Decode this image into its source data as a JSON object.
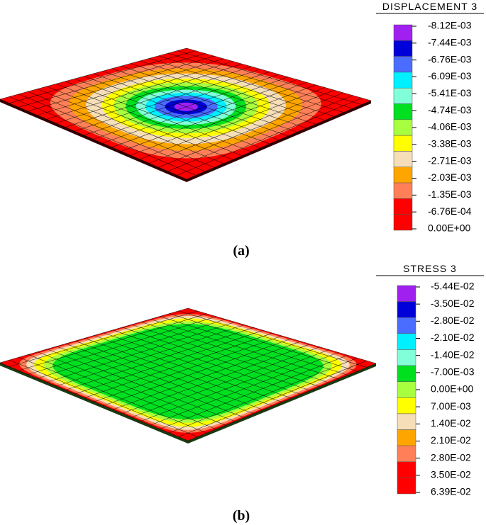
{
  "panels": [
    {
      "legend_title": "DISPLACEMENT 3",
      "labels": [
        "-8.12E-03",
        "-7.44E-03",
        "-6.76E-03",
        "-6.09E-03",
        "-5.41E-03",
        "-4.74E-03",
        "-4.06E-03",
        "-3.38E-03",
        "-2.71E-03",
        "-2.03E-03",
        "-1.35E-03",
        "-6.76E-04",
        "0.00E+00"
      ],
      "colors": [
        "#a020f0",
        "#0000d8",
        "#4a6cff",
        "#00f0ff",
        "#80ffd8",
        "#00e020",
        "#a8ff40",
        "#ffff00",
        "#f5deb8",
        "#ffa500",
        "#ff8058",
        "#ff0000",
        "#ff0000"
      ],
      "caption": "(a)"
    },
    {
      "legend_title": "STRESS 3",
      "labels": [
        "-5.44E-02",
        "-3.50E-02",
        "-2.80E-02",
        "-2.10E-02",
        "-1.40E-02",
        "-7.00E-03",
        "0.00E+00",
        "7.00E-03",
        "1.40E-02",
        "2.10E-02",
        "2.80E-02",
        "3.50E-02",
        "6.39E-02"
      ],
      "colors": [
        "#a020f0",
        "#0000d8",
        "#4a6cff",
        "#00f0ff",
        "#80ffd8",
        "#00e020",
        "#a8ff40",
        "#ffff00",
        "#f5deb8",
        "#ffa500",
        "#ff8058",
        "#ff0000",
        "#ff0000"
      ],
      "caption": "(b)"
    }
  ]
}
